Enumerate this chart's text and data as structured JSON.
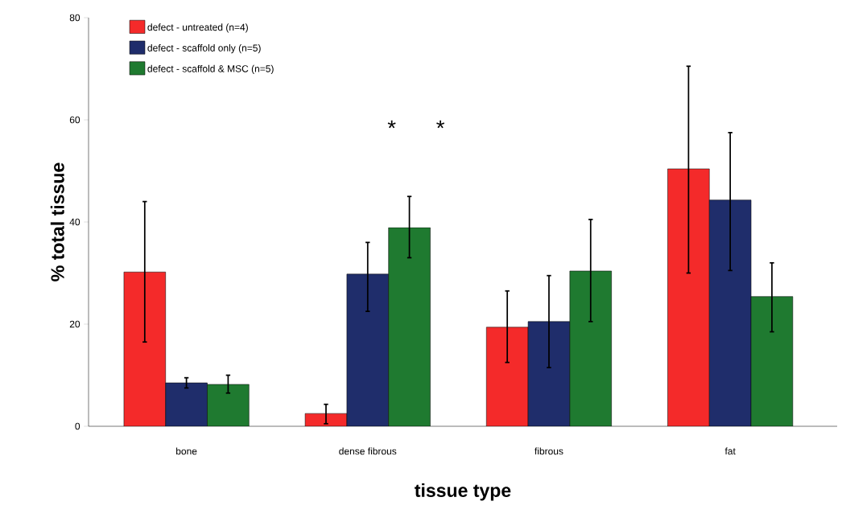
{
  "chart_data": {
    "type": "bar",
    "xlabel": "tissue type",
    "ylabel": "% total tissue",
    "categories": [
      "bone",
      "dense fibrous",
      "fibrous",
      "fat"
    ],
    "series": [
      {
        "name": "defect - untreated (n=4)",
        "color": "#f42a2a",
        "values": [
          30.2,
          2.5,
          19.4,
          50.4
        ],
        "errors": [
          [
            16.5,
            44
          ],
          [
            0.5,
            4.3
          ],
          [
            12.5,
            26.5
          ],
          [
            30,
            70.5
          ]
        ]
      },
      {
        "name": "defect - scaffold only (n=5)",
        "color": "#1f2d6b",
        "values": [
          8.5,
          29.8,
          20.5,
          44.3
        ],
        "errors": [
          [
            7.5,
            9.5
          ],
          [
            22.5,
            36
          ],
          [
            11.5,
            29.5
          ],
          [
            30.5,
            57.5
          ]
        ]
      },
      {
        "name": "defect - scaffold & MSC (n=5)",
        "color": "#1f7a30",
        "values": [
          8.2,
          38.9,
          30.4,
          25.4
        ],
        "errors": [
          [
            6.5,
            10
          ],
          [
            33,
            45
          ],
          [
            20.5,
            40.5
          ],
          [
            18.5,
            32
          ]
        ]
      }
    ],
    "annotations": [
      "*",
      "*"
    ],
    "ylim": [
      0,
      80
    ],
    "yticks": [
      0,
      20,
      40,
      60,
      80
    ],
    "legend": "top left",
    "grid": false
  }
}
